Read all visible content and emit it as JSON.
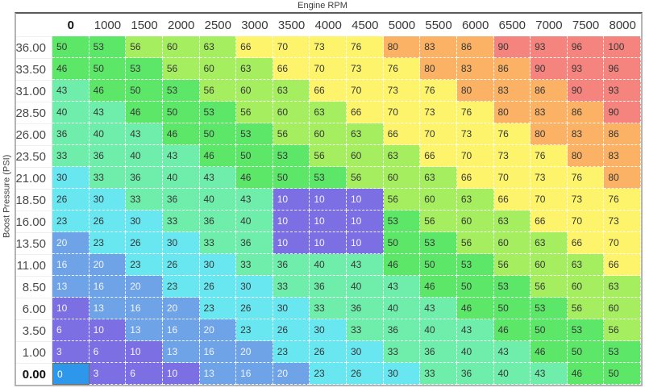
{
  "window": {
    "title": "Engine RPM",
    "y_axis_label": "Boost Pressure (PSI)"
  },
  "chart_data": {
    "type": "heatmap",
    "title": "Engine RPM",
    "xlabel": "Engine RPM",
    "ylabel": "Boost Pressure (PSI)",
    "columns": [
      "0",
      "1000",
      "1500",
      "2000",
      "2500",
      "3000",
      "3500",
      "4000",
      "4500",
      "5000",
      "5500",
      "6000",
      "6500",
      "7000",
      "7500",
      "8000"
    ],
    "rows": [
      "36.00",
      "33.50",
      "31.00",
      "28.50",
      "26.00",
      "23.50",
      "21.00",
      "18.50",
      "16.00",
      "13.50",
      "11.00",
      "8.50",
      "6.00",
      "3.50",
      "1.00",
      "0.00"
    ],
    "values": [
      [
        50,
        53,
        56,
        60,
        63,
        66,
        70,
        73,
        76,
        80,
        83,
        86,
        90,
        93,
        96,
        100
      ],
      [
        46,
        50,
        53,
        56,
        60,
        63,
        66,
        70,
        73,
        76,
        80,
        83,
        86,
        90,
        93,
        96
      ],
      [
        43,
        46,
        50,
        53,
        56,
        60,
        63,
        66,
        70,
        73,
        76,
        80,
        83,
        86,
        90,
        93
      ],
      [
        40,
        43,
        46,
        50,
        53,
        56,
        60,
        63,
        66,
        70,
        73,
        76,
        80,
        83,
        86,
        90
      ],
      [
        36,
        40,
        43,
        46,
        50,
        53,
        56,
        60,
        63,
        66,
        70,
        73,
        76,
        80,
        83,
        86
      ],
      [
        33,
        36,
        40,
        43,
        46,
        50,
        53,
        56,
        60,
        63,
        66,
        70,
        73,
        76,
        80,
        83
      ],
      [
        30,
        33,
        36,
        40,
        43,
        46,
        50,
        53,
        56,
        60,
        63,
        66,
        70,
        73,
        76,
        80
      ],
      [
        26,
        30,
        33,
        36,
        40,
        43,
        10,
        10,
        10,
        56,
        60,
        63,
        66,
        70,
        73,
        76
      ],
      [
        23,
        26,
        30,
        33,
        36,
        40,
        10,
        10,
        10,
        53,
        56,
        60,
        63,
        66,
        70,
        73
      ],
      [
        20,
        23,
        26,
        30,
        33,
        36,
        10,
        10,
        10,
        50,
        53,
        56,
        60,
        63,
        66,
        70
      ],
      [
        16,
        20,
        23,
        26,
        30,
        33,
        36,
        40,
        43,
        46,
        50,
        53,
        56,
        60,
        63,
        66
      ],
      [
        13,
        16,
        20,
        23,
        26,
        30,
        33,
        36,
        40,
        43,
        46,
        50,
        53,
        56,
        60,
        63
      ],
      [
        10,
        13,
        16,
        20,
        23,
        26,
        30,
        33,
        36,
        40,
        43,
        46,
        50,
        53,
        56,
        60
      ],
      [
        6,
        10,
        13,
        16,
        20,
        23,
        26,
        30,
        33,
        36,
        40,
        43,
        46,
        50,
        53,
        56
      ],
      [
        3,
        6,
        10,
        13,
        16,
        20,
        23,
        26,
        30,
        33,
        36,
        40,
        43,
        46,
        50,
        53
      ],
      [
        0,
        3,
        6,
        10,
        13,
        16,
        20,
        23,
        26,
        30,
        33,
        36,
        40,
        43,
        46,
        50
      ]
    ],
    "selection": {
      "row": "0.00",
      "column": "0"
    },
    "selected_cell_colors": {
      "bg": "#2d97ec",
      "fg": "#ffffff",
      "border": "#6e6e5e"
    },
    "color_scale": [
      {
        "max": 10,
        "bg": "#7b6fe3",
        "fg": "#f4f4ff"
      },
      {
        "max": 20,
        "bg": "#6fa3e8",
        "fg": "#eef3fb"
      },
      {
        "max": 30,
        "bg": "#68e7f1",
        "fg": "#373737"
      },
      {
        "max": 43,
        "bg": "#6fedaa",
        "fg": "#373737"
      },
      {
        "max": 53,
        "bg": "#5ce768",
        "fg": "#373737"
      },
      {
        "max": 63,
        "bg": "#a4ee5f",
        "fg": "#373737"
      },
      {
        "max": 76,
        "bg": "#fdf46b",
        "fg": "#373737"
      },
      {
        "max": 86,
        "bg": "#fbb264",
        "fg": "#373737"
      },
      {
        "max": 100,
        "bg": "#f5837e",
        "fg": "#373737"
      }
    ]
  }
}
